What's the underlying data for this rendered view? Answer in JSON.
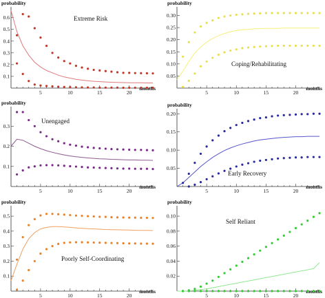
{
  "chart_data": [
    {
      "type": "line",
      "title": "Extreme Risk",
      "xlabel": "months",
      "ylabel": "probability",
      "xlim": [
        0,
        24
      ],
      "ylim": [
        0,
        0.68
      ],
      "xticks": [
        5,
        10,
        15,
        20
      ],
      "yticks": [
        0.1,
        0.2,
        0.3,
        0.4,
        0.5,
        0.6
      ],
      "tick_decimals": 1,
      "color": "#e07a7a",
      "dot_color": "#c0392b",
      "series": [
        {
          "role": "mean",
          "x": [
            0,
            1,
            2,
            3,
            4,
            5,
            6,
            7,
            8,
            9,
            10,
            11,
            12,
            13,
            14,
            15,
            16,
            17,
            18,
            19,
            20,
            21,
            22,
            23,
            24
          ],
          "y": [
            0.66,
            0.48,
            0.36,
            0.28,
            0.22,
            0.18,
            0.15,
            0.13,
            0.11,
            0.095,
            0.085,
            0.075,
            0.068,
            0.062,
            0.058,
            0.055,
            0.052,
            0.05,
            0.048,
            0.047,
            0.046,
            0.045,
            0.045,
            0.044,
            0.044
          ]
        },
        {
          "role": "upper",
          "x": [
            1,
            2,
            3,
            4,
            5,
            6,
            7,
            8,
            9,
            10,
            11,
            12,
            13,
            14,
            15,
            16,
            17,
            18,
            19,
            20,
            21,
            22,
            23,
            24
          ],
          "y": [
            0.45,
            0.63,
            0.61,
            0.51,
            0.43,
            0.36,
            0.3,
            0.26,
            0.23,
            0.21,
            0.19,
            0.175,
            0.165,
            0.155,
            0.15,
            0.145,
            0.14,
            0.135,
            0.13,
            0.13,
            0.128,
            0.127,
            0.126,
            0.125
          ]
        },
        {
          "role": "lower",
          "x": [
            1,
            2,
            3,
            4,
            5,
            6,
            7,
            8,
            9,
            10,
            11,
            12,
            13,
            14,
            15,
            16,
            17,
            18,
            19,
            20,
            21,
            22,
            23,
            24
          ],
          "y": [
            0.21,
            0.12,
            0.06,
            0.03,
            0.022,
            0.018,
            0.015,
            0.012,
            0.01,
            0.008,
            0.007,
            0.006,
            0.005,
            0.005,
            0.004,
            0.004,
            0.004,
            0.004,
            0.003,
            0.003,
            0.003,
            0.003,
            0.003,
            0.003
          ]
        }
      ]
    },
    {
      "type": "line",
      "title": "Coping/Rehabilitating",
      "xlabel": "months",
      "ylabel": "probability",
      "xlim": [
        0,
        24
      ],
      "ylim": [
        0,
        0.33
      ],
      "xticks": [
        5,
        10,
        15,
        20
      ],
      "yticks": [
        0.05,
        0.1,
        0.15,
        0.2,
        0.25,
        0.3
      ],
      "tick_decimals": 2,
      "color": "#f5f07a",
      "dot_color": "#e8e050",
      "series": [
        {
          "role": "mean",
          "x": [
            0,
            1,
            2,
            3,
            4,
            5,
            6,
            7,
            8,
            9,
            10,
            11,
            12,
            13,
            14,
            15,
            16,
            17,
            18,
            19,
            20,
            21,
            22,
            23,
            24
          ],
          "y": [
            0.035,
            0.07,
            0.11,
            0.145,
            0.17,
            0.19,
            0.205,
            0.217,
            0.226,
            0.233,
            0.238,
            0.241,
            0.243,
            0.245,
            0.246,
            0.247,
            0.247,
            0.247,
            0.248,
            0.248,
            0.248,
            0.248,
            0.248,
            0.248,
            0.248
          ]
        },
        {
          "role": "upper",
          "x": [
            1,
            2,
            3,
            4,
            5,
            6,
            7,
            8,
            9,
            10,
            11,
            12,
            13,
            14,
            15,
            16,
            17,
            18,
            19,
            20,
            21,
            22,
            23,
            24
          ],
          "y": [
            0.13,
            0.19,
            0.23,
            0.255,
            0.27,
            0.28,
            0.29,
            0.296,
            0.3,
            0.303,
            0.305,
            0.307,
            0.308,
            0.309,
            0.31,
            0.31,
            0.31,
            0.31,
            0.31,
            0.31,
            0.31,
            0.31,
            0.31,
            0.31
          ]
        },
        {
          "role": "lower",
          "x": [
            1,
            2,
            3,
            4,
            5,
            6,
            7,
            8,
            9,
            10,
            11,
            12,
            13,
            14,
            15,
            16,
            17,
            18,
            19,
            20,
            21,
            22,
            23,
            24
          ],
          "y": [
            0.005,
            0.03,
            0.06,
            0.09,
            0.11,
            0.125,
            0.138,
            0.148,
            0.155,
            0.16,
            0.165,
            0.168,
            0.17,
            0.172,
            0.173,
            0.174,
            0.175,
            0.175,
            0.175,
            0.175,
            0.175,
            0.175,
            0.175,
            0.175
          ]
        }
      ]
    },
    {
      "type": "line",
      "title": "Unengaged",
      "xlabel": "months",
      "ylabel": "probability",
      "xlim": [
        0,
        24
      ],
      "ylim": [
        0,
        0.39
      ],
      "xticks": [
        5,
        10,
        15,
        20
      ],
      "yticks": [
        0.1,
        0.2,
        0.3
      ],
      "tick_decimals": 1,
      "color": "#8e5a8e",
      "dot_color": "#7b2a8a",
      "series": [
        {
          "role": "mean",
          "x": [
            0,
            1,
            2,
            3,
            4,
            5,
            6,
            7,
            8,
            9,
            10,
            11,
            12,
            13,
            14,
            15,
            16,
            17,
            18,
            19,
            20,
            21,
            22,
            23,
            24
          ],
          "y": [
            0.2,
            0.235,
            0.23,
            0.215,
            0.2,
            0.188,
            0.178,
            0.17,
            0.163,
            0.157,
            0.152,
            0.148,
            0.145,
            0.142,
            0.14,
            0.138,
            0.137,
            0.135,
            0.134,
            0.133,
            0.132,
            0.132,
            0.131,
            0.131,
            0.13
          ]
        },
        {
          "role": "upper",
          "x": [
            1,
            2,
            3,
            4,
            5,
            6,
            7,
            8,
            9,
            10,
            11,
            12,
            13,
            14,
            15,
            16,
            17,
            18,
            19,
            20,
            21,
            22,
            23,
            24
          ],
          "y": [
            0.37,
            0.37,
            0.33,
            0.3,
            0.27,
            0.25,
            0.235,
            0.225,
            0.215,
            0.208,
            0.203,
            0.198,
            0.195,
            0.192,
            0.19,
            0.188,
            0.186,
            0.185,
            0.184,
            0.183,
            0.182,
            0.182,
            0.181,
            0.18
          ]
        },
        {
          "role": "lower",
          "x": [
            1,
            2,
            3,
            4,
            5,
            6,
            7,
            8,
            9,
            10,
            11,
            12,
            13,
            14,
            15,
            16,
            17,
            18,
            19,
            20,
            21,
            22,
            23,
            24
          ],
          "y": [
            0.06,
            0.08,
            0.095,
            0.1,
            0.105,
            0.106,
            0.106,
            0.105,
            0.103,
            0.101,
            0.099,
            0.097,
            0.095,
            0.094,
            0.093,
            0.092,
            0.091,
            0.09,
            0.089,
            0.089,
            0.088,
            0.088,
            0.088,
            0.087
          ]
        }
      ]
    },
    {
      "type": "line",
      "title": "Early Recovery",
      "xlabel": "months",
      "ylabel": "probability",
      "xlim": [
        0,
        24
      ],
      "ylim": [
        0,
        0.21
      ],
      "xticks": [
        5,
        10,
        15,
        20
      ],
      "yticks": [
        0.05,
        0.1,
        0.15,
        0.2
      ],
      "tick_decimals": 2,
      "color": "#5555cc",
      "dot_color": "#2a2aa0",
      "series": [
        {
          "role": "mean",
          "x": [
            0,
            1,
            2,
            3,
            4,
            5,
            6,
            7,
            8,
            9,
            10,
            11,
            12,
            13,
            14,
            15,
            16,
            17,
            18,
            19,
            20,
            21,
            22,
            23,
            24
          ],
          "y": [
            0.0,
            0.01,
            0.025,
            0.04,
            0.055,
            0.068,
            0.08,
            0.09,
            0.099,
            0.106,
            0.112,
            0.117,
            0.121,
            0.125,
            0.128,
            0.13,
            0.132,
            0.134,
            0.135,
            0.136,
            0.137,
            0.137,
            0.138,
            0.138,
            0.138
          ]
        },
        {
          "role": "upper",
          "x": [
            1,
            2,
            3,
            4,
            5,
            6,
            7,
            8,
            9,
            10,
            11,
            12,
            13,
            14,
            15,
            16,
            17,
            18,
            19,
            20,
            21,
            22,
            23,
            24
          ],
          "y": [
            0.01,
            0.035,
            0.065,
            0.09,
            0.11,
            0.127,
            0.14,
            0.152,
            0.161,
            0.169,
            0.175,
            0.18,
            0.184,
            0.188,
            0.19,
            0.193,
            0.195,
            0.196,
            0.197,
            0.198,
            0.199,
            0.199,
            0.2,
            0.2
          ]
        },
        {
          "role": "lower",
          "x": [
            2,
            3,
            4,
            5,
            6,
            7,
            8,
            9,
            10,
            11,
            12,
            13,
            14,
            15,
            16,
            17,
            18,
            19,
            20,
            21,
            22,
            23,
            24
          ],
          "y": [
            0.0,
            0.005,
            0.012,
            0.02,
            0.028,
            0.036,
            0.043,
            0.049,
            0.055,
            0.06,
            0.064,
            0.068,
            0.071,
            0.073,
            0.075,
            0.077,
            0.078,
            0.079,
            0.08,
            0.08,
            0.081,
            0.081,
            0.081
          ]
        }
      ]
    },
    {
      "type": "line",
      "title": "Poorly Self-Coordinating",
      "xlabel": "months",
      "ylabel": "probability",
      "xlim": [
        0,
        24
      ],
      "ylim": [
        0,
        0.56
      ],
      "xticks": [
        5,
        10,
        15,
        20
      ],
      "yticks": [
        0.1,
        0.2,
        0.3,
        0.4,
        0.5
      ],
      "tick_decimals": 1,
      "color": "#f0a060",
      "dot_color": "#e8832a",
      "series": [
        {
          "role": "mean",
          "x": [
            0,
            1,
            2,
            3,
            4,
            5,
            6,
            7,
            8,
            9,
            10,
            11,
            12,
            13,
            14,
            15,
            16,
            17,
            18,
            19,
            20,
            21,
            22,
            23,
            24
          ],
          "y": [
            0.07,
            0.18,
            0.28,
            0.35,
            0.39,
            0.415,
            0.425,
            0.43,
            0.43,
            0.428,
            0.425,
            0.422,
            0.419,
            0.417,
            0.415,
            0.413,
            0.411,
            0.41,
            0.409,
            0.408,
            0.407,
            0.406,
            0.405,
            0.405,
            0.404
          ]
        },
        {
          "role": "upper",
          "x": [
            1,
            2,
            3,
            4,
            5,
            6,
            7,
            8,
            9,
            10,
            11,
            12,
            13,
            14,
            15,
            16,
            17,
            18,
            19,
            20,
            21,
            22,
            23,
            24
          ],
          "y": [
            0.21,
            0.36,
            0.44,
            0.48,
            0.505,
            0.515,
            0.515,
            0.513,
            0.51,
            0.507,
            0.504,
            0.502,
            0.5,
            0.498,
            0.496,
            0.495,
            0.493,
            0.492,
            0.491,
            0.49,
            0.49,
            0.489,
            0.489,
            0.488
          ]
        },
        {
          "role": "lower",
          "x": [
            1,
            2,
            3,
            4,
            5,
            6,
            7,
            8,
            9,
            10,
            11,
            12,
            13,
            14,
            15,
            16,
            17,
            18,
            19,
            20,
            21,
            22,
            23,
            24
          ],
          "y": [
            0.01,
            0.07,
            0.14,
            0.2,
            0.25,
            0.28,
            0.3,
            0.315,
            0.322,
            0.325,
            0.326,
            0.326,
            0.325,
            0.324,
            0.323,
            0.322,
            0.321,
            0.32,
            0.319,
            0.318,
            0.318,
            0.317,
            0.317,
            0.316
          ]
        }
      ]
    },
    {
      "type": "line",
      "title": "Self Reliant",
      "xlabel": "months",
      "ylabel": "probability",
      "xlim": [
        0,
        24
      ],
      "ylim": [
        0,
        0.112
      ],
      "xticks": [
        5,
        10,
        15,
        20
      ],
      "yticks": [
        0.02,
        0.04,
        0.06,
        0.08,
        0.1
      ],
      "tick_decimals": 2,
      "color": "#90e890",
      "dot_color": "#33cc33",
      "series": [
        {
          "role": "mean",
          "x": [
            0,
            1,
            2,
            3,
            4,
            5,
            6,
            7,
            8,
            9,
            10,
            11,
            12,
            13,
            14,
            15,
            16,
            17,
            18,
            19,
            20,
            21,
            22,
            23,
            24
          ],
          "y": [
            0.0,
            0.0,
            0.0003,
            0.001,
            0.002,
            0.003,
            0.0045,
            0.006,
            0.0075,
            0.009,
            0.0105,
            0.012,
            0.0135,
            0.015,
            0.0165,
            0.018,
            0.0195,
            0.021,
            0.0225,
            0.024,
            0.0255,
            0.027,
            0.0285,
            0.03,
            0.038
          ]
        },
        {
          "role": "upper",
          "x": [
            1,
            2,
            3,
            4,
            5,
            6,
            7,
            8,
            9,
            10,
            11,
            12,
            13,
            14,
            15,
            16,
            17,
            18,
            19,
            20,
            21,
            22,
            23,
            24
          ],
          "y": [
            0.0,
            0.001,
            0.003,
            0.006,
            0.01,
            0.014,
            0.019,
            0.024,
            0.029,
            0.034,
            0.039,
            0.044,
            0.049,
            0.054,
            0.059,
            0.064,
            0.069,
            0.074,
            0.079,
            0.084,
            0.089,
            0.094,
            0.099,
            0.104
          ]
        },
        {
          "role": "lower",
          "x": [
            1,
            2,
            3,
            4,
            5,
            6,
            7,
            8,
            9,
            10,
            11,
            12,
            13,
            14,
            15,
            16,
            17,
            18,
            19,
            20,
            21,
            22,
            23,
            24
          ],
          "y": [
            0,
            0,
            0,
            0,
            0,
            0,
            0,
            0,
            0,
            0,
            0,
            0,
            0,
            0,
            0,
            0,
            0,
            0,
            0,
            0,
            0,
            0,
            0,
            0
          ]
        }
      ]
    }
  ]
}
